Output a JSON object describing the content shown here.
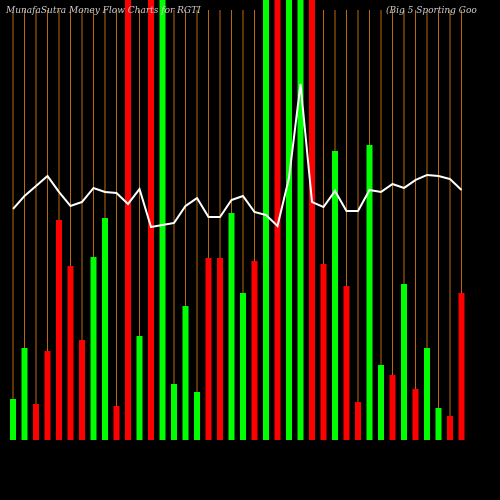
{
  "chart_data": {
    "type": "bar",
    "title": "MunafaSutra  Money Flow  Charts for RGTI",
    "subtitle": "(Big 5 Sporting Goo",
    "categories": [
      null,
      null,
      null,
      null,
      null,
      null,
      null,
      null,
      null,
      null,
      null,
      null,
      null,
      null,
      null,
      null,
      null,
      null,
      null,
      null,
      null,
      null,
      null,
      null,
      null,
      null,
      null,
      null,
      null,
      null,
      null,
      null,
      null,
      null,
      null,
      null,
      null,
      null,
      null,
      null
    ],
    "ylim": [
      0,
      440
    ],
    "grid": true,
    "grid_color": "#b8690a",
    "values": [
      41,
      92,
      36,
      89,
      220,
      174,
      100,
      183,
      222,
      34,
      440,
      104,
      440,
      440,
      56,
      134,
      48,
      182,
      182,
      227,
      147,
      179,
      440,
      440,
      440,
      440,
      440,
      176,
      289,
      154,
      38,
      295,
      75,
      65,
      156,
      51,
      92,
      32,
      24,
      147
    ],
    "colors": [
      "#00ff00",
      "#00ff00",
      "#ff0000",
      "#ff0000",
      "#ff0000",
      "#ff0000",
      "#ff0000",
      "#00ff00",
      "#00ff00",
      "#ff0000",
      "#ff0000",
      "#00ff00",
      "#ff0000",
      "#00ff00",
      "#00ff00",
      "#00ff00",
      "#00ff00",
      "#ff0000",
      "#ff0000",
      "#00ff00",
      "#00ff00",
      "#ff0000",
      "#00ff00",
      "#ff0000",
      "#00ff00",
      "#00ff00",
      "#ff0000",
      "#ff0000",
      "#00ff00",
      "#ff0000",
      "#ff0000",
      "#00ff00",
      "#00ff00",
      "#ff0000",
      "#00ff00",
      "#ff0000",
      "#00ff00",
      "#00ff00",
      "#ff0000",
      "#ff0000"
    ],
    "line": {
      "color": "#ffffff",
      "values": [
        231,
        244,
        254,
        264,
        248,
        234,
        238,
        252,
        248,
        247,
        236,
        251,
        213,
        215,
        217,
        234,
        242,
        223,
        223,
        240,
        244,
        228,
        225,
        214,
        262,
        356,
        238,
        233,
        249,
        229,
        229,
        250,
        248,
        256,
        252,
        260,
        265,
        264,
        261,
        250
      ]
    }
  }
}
